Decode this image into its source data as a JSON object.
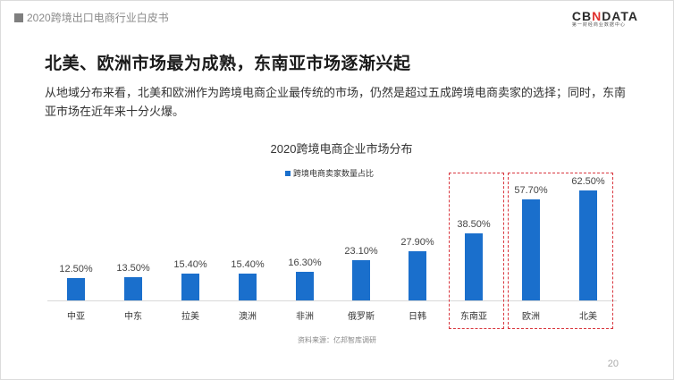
{
  "header": {
    "title": "2020跨境出口电商行业白皮书"
  },
  "logo": {
    "text_pre": "CB",
    "text_x": "N",
    "text_post": "DATA",
    "subtitle": "第一财经商业数据中心"
  },
  "slide": {
    "title": "北美、欧洲市场最为成熟，东南亚市场逐渐兴起",
    "description": "从地域分布来看，北美和欧洲作为跨境电商企业最传统的市场，仍然是超过五成跨境电商卖家的选择；同时，东南亚市场在近年来十分火爆。"
  },
  "chart_data": {
    "type": "bar",
    "title": "2020跨境电商企业市场分布",
    "legend": [
      "跨境电商卖家数量占比"
    ],
    "legend_position": "top",
    "categories": [
      "中亚",
      "中东",
      "拉美",
      "澳洲",
      "非洲",
      "俄罗斯",
      "日韩",
      "东南亚",
      "欧洲",
      "北美"
    ],
    "series": [
      {
        "name": "跨境电商卖家数量占比",
        "values": [
          12.5,
          13.5,
          15.4,
          15.4,
          16.3,
          23.1,
          27.9,
          38.5,
          57.7,
          62.5
        ],
        "color": "#1a6fcc"
      }
    ],
    "value_labels": [
      "12.50%",
      "13.50%",
      "15.40%",
      "15.40%",
      "16.30%",
      "23.10%",
      "27.90%",
      "38.50%",
      "57.70%",
      "62.50%"
    ],
    "xlabel": "",
    "ylabel": "",
    "grid": false,
    "highlights": [
      [
        "东南亚"
      ],
      [
        "欧洲",
        "北美"
      ]
    ],
    "highlight_color": "#d9363e"
  },
  "footer": {
    "source": "资料来源：亿邦智库调研",
    "page_number": "20"
  }
}
